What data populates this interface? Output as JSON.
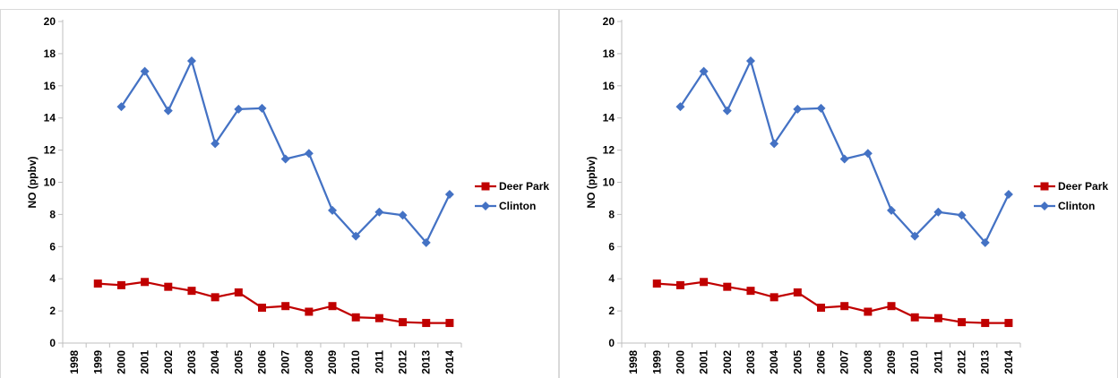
{
  "chart_data": [
    {
      "type": "line",
      "x": [
        "1998",
        "1999",
        "2000",
        "2001",
        "2002",
        "2003",
        "2004",
        "2005",
        "2006",
        "2007",
        "2008",
        "2009",
        "2010",
        "2011",
        "2012",
        "2013",
        "2014"
      ],
      "ylabel": "NO (ppbv)",
      "ylim": [
        0,
        20
      ],
      "yticks": [
        "0",
        "2",
        "4",
        "6",
        "8",
        "10",
        "12",
        "14",
        "16",
        "18",
        "20"
      ],
      "grid": false,
      "legend": "right",
      "series": [
        {
          "name": "Deer Park",
          "color": "#c00000",
          "marker": "square",
          "values": [
            null,
            3.7,
            3.6,
            3.8,
            3.5,
            3.25,
            2.85,
            3.15,
            2.2,
            2.3,
            1.95,
            2.3,
            1.6,
            1.55,
            1.3,
            1.25,
            1.25
          ]
        },
        {
          "name": "Clinton",
          "color": "#4472c4",
          "marker": "diamond",
          "values": [
            null,
            null,
            14.7,
            16.9,
            14.45,
            17.55,
            12.4,
            14.55,
            14.6,
            11.45,
            11.8,
            8.25,
            6.65,
            8.15,
            7.95,
            6.25,
            9.25
          ]
        }
      ]
    },
    {
      "type": "line",
      "x": [
        "1998",
        "1999",
        "2000",
        "2001",
        "2002",
        "2003",
        "2004",
        "2005",
        "2006",
        "2007",
        "2008",
        "2009",
        "2010",
        "2011",
        "2012",
        "2013",
        "2014"
      ],
      "ylabel": "NO (ppbv)",
      "ylim": [
        0,
        20
      ],
      "yticks": [
        "0",
        "2",
        "4",
        "6",
        "8",
        "10",
        "12",
        "14",
        "16",
        "18",
        "20"
      ],
      "grid": false,
      "legend": "right",
      "series": [
        {
          "name": "Deer Park",
          "color": "#c00000",
          "marker": "square",
          "values": [
            null,
            3.7,
            3.6,
            3.8,
            3.5,
            3.25,
            2.85,
            3.15,
            2.2,
            2.3,
            1.95,
            2.3,
            1.6,
            1.55,
            1.3,
            1.25,
            1.25
          ]
        },
        {
          "name": "Clinton",
          "color": "#4472c4",
          "marker": "diamond",
          "values": [
            null,
            null,
            14.7,
            16.9,
            14.45,
            17.55,
            12.4,
            14.55,
            14.6,
            11.45,
            11.8,
            8.25,
            6.65,
            8.15,
            7.95,
            6.25,
            9.25
          ]
        }
      ]
    }
  ]
}
